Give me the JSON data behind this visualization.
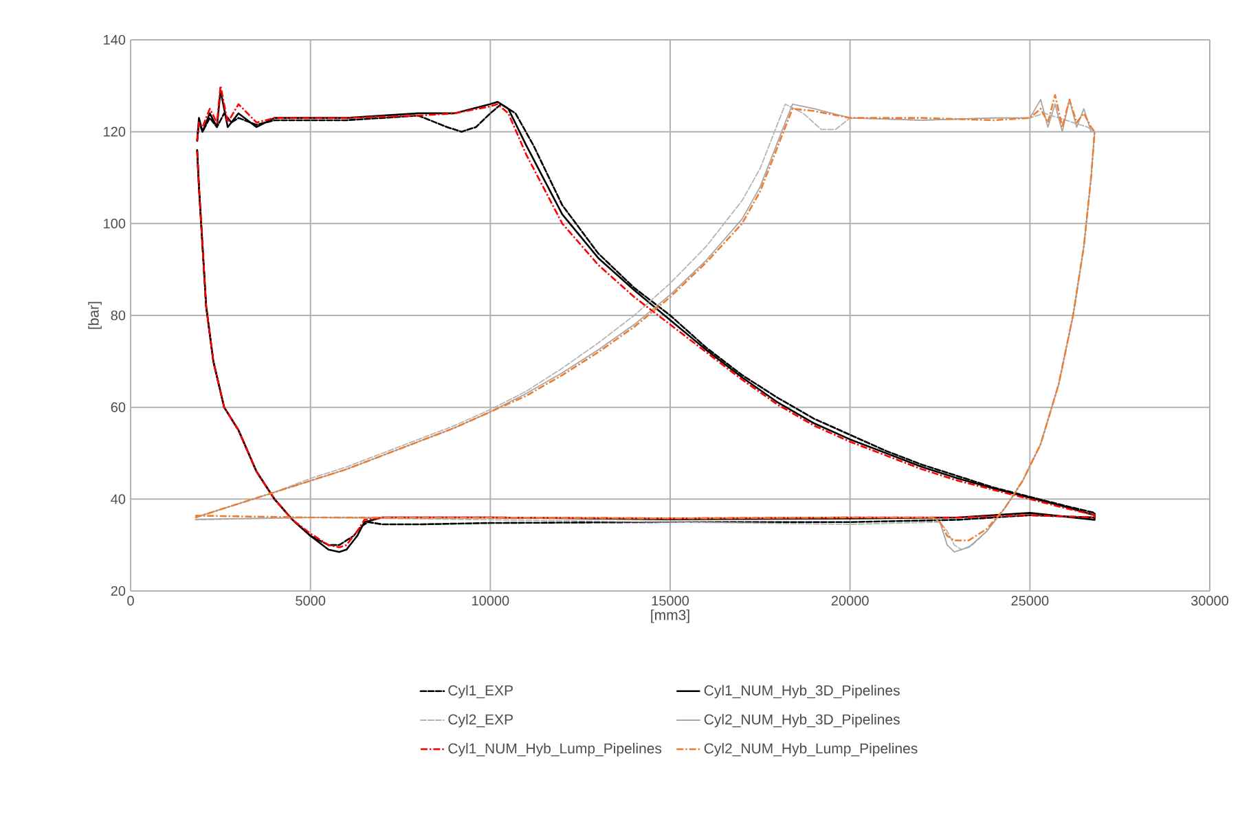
{
  "chart_data": {
    "type": "line",
    "xlabel": "[mm3]",
    "ylabel": "[bar]",
    "xlim": [
      0,
      30000
    ],
    "ylim": [
      20,
      140
    ],
    "xticks": [
      0,
      5000,
      10000,
      15000,
      20000,
      25000,
      30000
    ],
    "yticks": [
      20,
      40,
      60,
      80,
      100,
      120,
      140
    ],
    "grid": true,
    "legend": "bottom",
    "marker": "none",
    "series": [
      {
        "name": "Cyl1_EXP",
        "color": "#000000",
        "line_style": "dashed",
        "x": [
          1850,
          1900,
          2000,
          2200,
          2400,
          2600,
          2800,
          3000,
          3500,
          4000,
          6000,
          8000,
          8800,
          9200,
          9600,
          10000,
          10300,
          10700,
          11200,
          12000,
          13000,
          14000,
          15000,
          16000,
          17000,
          18000,
          19000,
          20000,
          21000,
          22000,
          23000,
          24000,
          25000,
          26000,
          26800,
          26800,
          25000,
          23000,
          20000,
          15000,
          10000,
          8000,
          7000,
          6600,
          6400,
          6200,
          6000,
          5800,
          5500,
          5000,
          4500,
          4000,
          3500,
          3000,
          2600,
          2300,
          2100,
          2000,
          1900,
          1850
        ],
        "values": [
          118,
          122,
          120,
          123,
          121,
          124,
          122,
          123,
          121.5,
          122.5,
          122.5,
          123.5,
          121,
          120,
          121,
          124,
          126,
          124,
          117,
          104,
          93.5,
          86,
          80,
          73,
          67,
          62,
          57.5,
          54,
          50.5,
          47.5,
          45,
          42.5,
          40.5,
          38.5,
          37,
          36,
          36.5,
          35.5,
          35,
          35,
          34.8,
          34.5,
          34.5,
          35,
          34,
          32,
          31,
          30,
          30,
          32,
          35.5,
          40,
          46,
          55,
          60,
          70,
          82,
          95,
          108,
          116
        ]
      },
      {
        "name": "Cyl1_NUM_Hyb_3D_Pipelines",
        "color": "#000000",
        "line_style": "solid",
        "x": [
          1850,
          1900,
          2000,
          2200,
          2400,
          2500,
          2700,
          3000,
          3500,
          4000,
          6000,
          8000,
          9000,
          10000,
          10200,
          10500,
          11000,
          12000,
          13000,
          14000,
          15000,
          16000,
          17000,
          18000,
          19000,
          20000,
          21000,
          22000,
          23000,
          24000,
          25000,
          26000,
          26800,
          26800,
          25000,
          23000,
          20000,
          15000,
          10000,
          7000,
          6500,
          6300,
          6000,
          5800,
          5500,
          5000,
          4500,
          4000,
          3500,
          3000,
          2600,
          2300,
          2100,
          2000,
          1900,
          1850
        ],
        "values": [
          118,
          123,
          120,
          124,
          121,
          129,
          121,
          124,
          121,
          123,
          123,
          124,
          124,
          126,
          126.5,
          125,
          117,
          102,
          92.5,
          85.5,
          79,
          72.5,
          66.5,
          61,
          56.5,
          53,
          50,
          47,
          44.5,
          42.3,
          40.3,
          38.3,
          36.5,
          35.5,
          37,
          36,
          35.8,
          35.6,
          36,
          36,
          35,
          32,
          29,
          28.5,
          29,
          32,
          35.5,
          40,
          46,
          55,
          60,
          70,
          82,
          95,
          108,
          116
        ]
      },
      {
        "name": "Cyl2_EXP",
        "color": "#b4b4b4",
        "line_style": "dashed",
        "x": [
          1800,
          3000,
          4000,
          5000,
          6000,
          7000,
          8000,
          9000,
          10000,
          11000,
          12000,
          13000,
          14000,
          15000,
          16000,
          17000,
          17500,
          18000,
          18200,
          18700,
          19200,
          19600,
          20000,
          22000,
          24000,
          25000,
          25400,
          25800,
          26200,
          26600,
          26800,
          26700,
          26500,
          26200,
          25800,
          25300,
          24800,
          24300,
          23800,
          23400,
          23100,
          22900,
          22700,
          22500,
          20000,
          15000,
          10000,
          5000,
          1800
        ],
        "values": [
          36,
          39,
          41.5,
          44.5,
          47,
          50,
          53,
          56,
          59.5,
          63.5,
          68.5,
          74,
          80,
          87,
          95,
          105,
          112,
          122,
          126,
          124,
          120.5,
          120.5,
          123,
          122.5,
          123,
          123,
          124,
          123,
          122,
          121,
          120,
          110,
          95,
          80,
          65,
          52,
          44,
          38,
          33,
          30,
          29,
          30,
          33,
          35,
          34.5,
          35,
          35.5,
          36,
          35.5
        ]
      },
      {
        "name": "Cyl2_NUM_Hyb_3D_Pipelines",
        "color": "#a6a6a6",
        "line_style": "solid",
        "x": [
          1800,
          3000,
          4000,
          5000,
          6000,
          7000,
          8000,
          9000,
          10000,
          11000,
          12000,
          13000,
          14000,
          15000,
          16000,
          17000,
          17500,
          18000,
          18400,
          19000,
          20000,
          22000,
          24000,
          25000,
          25300,
          25500,
          25700,
          25900,
          26100,
          26300,
          26500,
          26700,
          26800,
          26700,
          26500,
          26200,
          25800,
          25300,
          24800,
          24300,
          23800,
          23300,
          22900,
          22700,
          22500,
          22300,
          20000,
          15000,
          10000,
          5000,
          1800
        ],
        "values": [
          36,
          39,
          41.5,
          44,
          46.5,
          49.5,
          52.5,
          55.5,
          59,
          63,
          67.5,
          72.5,
          78,
          84.5,
          92,
          101,
          108,
          118,
          126,
          125,
          123,
          122.5,
          123,
          123,
          127,
          121,
          126,
          120,
          127,
          121,
          125,
          120,
          120,
          110,
          95,
          80,
          65,
          52,
          44,
          38,
          33,
          29.5,
          28.5,
          30,
          35,
          36,
          36,
          35.8,
          36,
          36,
          35.6
        ]
      },
      {
        "name": "Cyl1_NUM_Hyb_Lump_Pipelines",
        "color": "#ff0000",
        "line_style": "dashdot",
        "x": [
          1850,
          1900,
          2000,
          2200,
          2400,
          2500,
          2700,
          3000,
          3500,
          4000,
          6000,
          8000,
          9000,
          10000,
          10200,
          10500,
          11000,
          12000,
          13000,
          14000,
          15000,
          16000,
          17000,
          18000,
          19000,
          20000,
          21000,
          22000,
          23000,
          24000,
          25000,
          26000,
          26800,
          26800,
          25000,
          23000,
          20000,
          15000,
          10000,
          7000,
          6500,
          6300,
          6000,
          5800,
          5500,
          5000,
          4500,
          4000,
          3500,
          3000,
          2600,
          2300,
          2100,
          2000,
          1900,
          1850
        ],
        "values": [
          118,
          122,
          121,
          125,
          122,
          130,
          122,
          126,
          122,
          123,
          123,
          123.5,
          124,
          125.5,
          126,
          124,
          115,
          100,
          91,
          84,
          78,
          72,
          66,
          60.5,
          56,
          52.5,
          49.5,
          46.5,
          44,
          42,
          40,
          38,
          36.5,
          36,
          36.5,
          36,
          36,
          35.8,
          36,
          36,
          35.5,
          33,
          30,
          29.5,
          30,
          32.5,
          35.5,
          40,
          46,
          55,
          60,
          70,
          82,
          95,
          108,
          116
        ]
      },
      {
        "name": "Cyl2_NUM_Hyb_Lump_Pipelines",
        "color": "#ed7d31",
        "line_style": "dashdot",
        "x": [
          1800,
          3000,
          4000,
          5000,
          6000,
          7000,
          8000,
          9000,
          10000,
          11000,
          12000,
          13000,
          14000,
          15000,
          16000,
          17000,
          17500,
          18000,
          18400,
          19000,
          20000,
          22000,
          24000,
          25000,
          25300,
          25500,
          25700,
          25900,
          26100,
          26300,
          26500,
          26700,
          26800,
          26700,
          26500,
          26200,
          25800,
          25300,
          24800,
          24300,
          23800,
          23300,
          22900,
          22700,
          22500,
          22300,
          20000,
          15000,
          10000,
          5000,
          1800
        ],
        "values": [
          36,
          39,
          41.5,
          44,
          46.5,
          49.5,
          52.5,
          55.5,
          59,
          62.5,
          67,
          72,
          77.5,
          84,
          91.5,
          100,
          107,
          117,
          125,
          124.5,
          123,
          123,
          122.5,
          123,
          125,
          122,
          128,
          121,
          127,
          122,
          124,
          121,
          120,
          110,
          95,
          80,
          65,
          52,
          44,
          38,
          33.5,
          31,
          31,
          32,
          35,
          36,
          36,
          35.8,
          36,
          36,
          36.4
        ]
      }
    ]
  }
}
